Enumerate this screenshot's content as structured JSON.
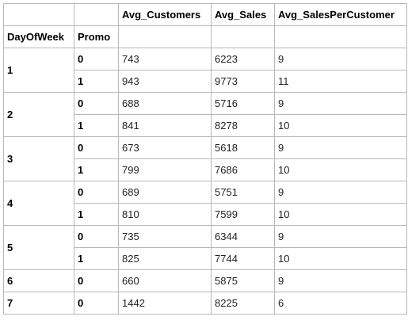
{
  "table": {
    "columns": [
      "Avg_Customers",
      "Avg_Sales",
      "Avg_SalesPerCustomer"
    ],
    "index_names": [
      "DayOfWeek",
      "Promo"
    ],
    "groups": [
      {
        "day": "1",
        "rows": [
          {
            "promo": "0",
            "values": [
              "743",
              "6223",
              "9"
            ]
          },
          {
            "promo": "1",
            "values": [
              "943",
              "9773",
              "11"
            ]
          }
        ]
      },
      {
        "day": "2",
        "rows": [
          {
            "promo": "0",
            "values": [
              "688",
              "5716",
              "9"
            ]
          },
          {
            "promo": "1",
            "values": [
              "841",
              "8278",
              "10"
            ]
          }
        ]
      },
      {
        "day": "3",
        "rows": [
          {
            "promo": "0",
            "values": [
              "673",
              "5618",
              "9"
            ]
          },
          {
            "promo": "1",
            "values": [
              "799",
              "7686",
              "10"
            ]
          }
        ]
      },
      {
        "day": "4",
        "rows": [
          {
            "promo": "0",
            "values": [
              "689",
              "5751",
              "9"
            ]
          },
          {
            "promo": "1",
            "values": [
              "810",
              "7599",
              "10"
            ]
          }
        ]
      },
      {
        "day": "5",
        "rows": [
          {
            "promo": "0",
            "values": [
              "735",
              "6344",
              "9"
            ]
          },
          {
            "promo": "1",
            "values": [
              "825",
              "7744",
              "10"
            ]
          }
        ]
      },
      {
        "day": "6",
        "rows": [
          {
            "promo": "0",
            "values": [
              "660",
              "5875",
              "9"
            ]
          }
        ]
      },
      {
        "day": "7",
        "rows": [
          {
            "promo": "0",
            "values": [
              "1442",
              "8225",
              "6"
            ]
          }
        ]
      }
    ]
  }
}
